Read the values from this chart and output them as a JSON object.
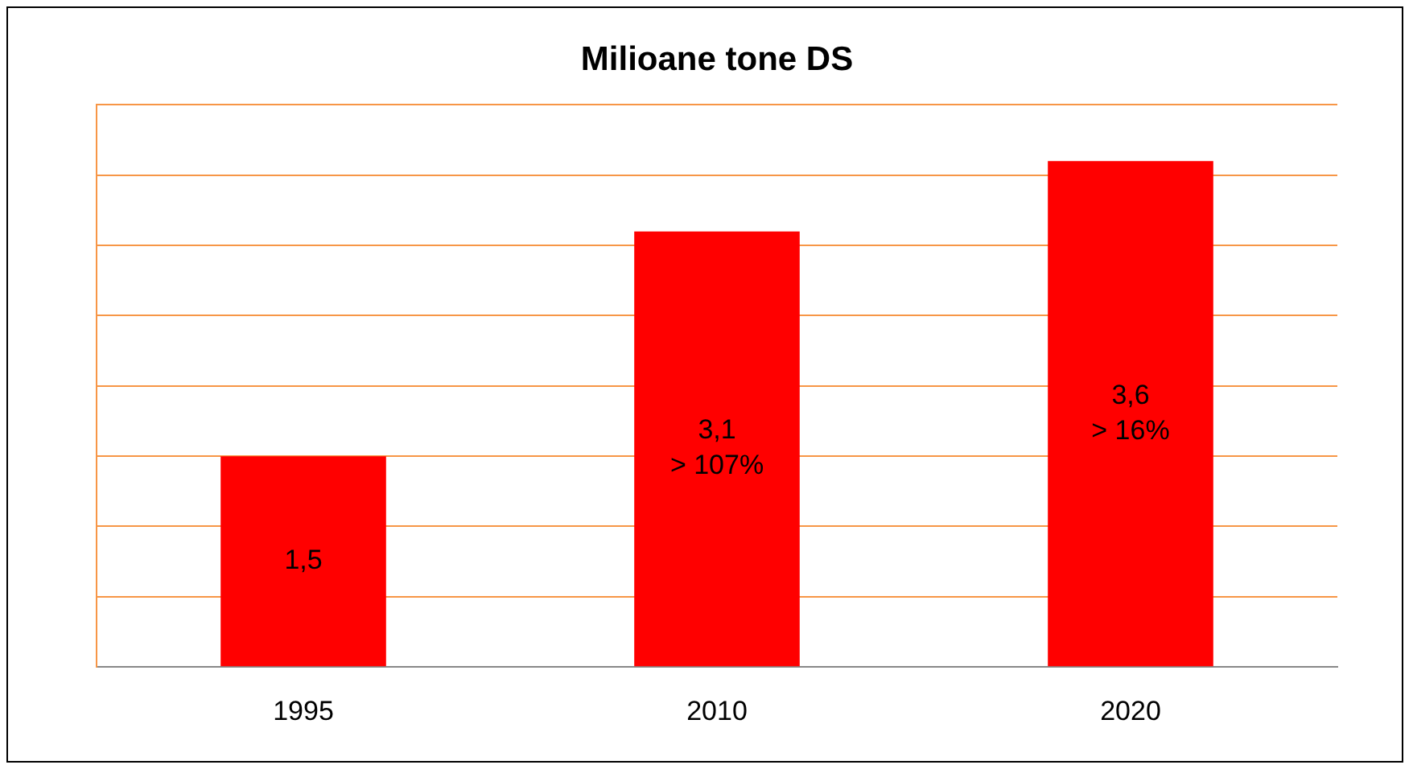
{
  "chart_data": {
    "type": "bar",
    "title": "Milioane tone DS",
    "categories": [
      "1995",
      "2010",
      "2020"
    ],
    "values": [
      1.5,
      3.1,
      3.6
    ],
    "color": "#ff0000",
    "value_labels": [
      "1,5",
      "3,1\n> 107%",
      "3,6\n> 16%"
    ],
    "ylim": [
      0,
      4
    ],
    "yticks": [
      {
        "value": 0,
        "label": null
      },
      {
        "value": 0.5,
        "label": null
      },
      {
        "value": 1,
        "label": null
      },
      {
        "value": 1.5,
        "label": null
      },
      {
        "value": 2,
        "label": null
      },
      {
        "value": 2.5,
        "label": null
      },
      {
        "value": 3,
        "label": null
      },
      {
        "value": 3.5,
        "label": null
      },
      {
        "value": 4,
        "label": null
      }
    ],
    "tick_labels": "x",
    "grid": "y",
    "legend": false
  }
}
